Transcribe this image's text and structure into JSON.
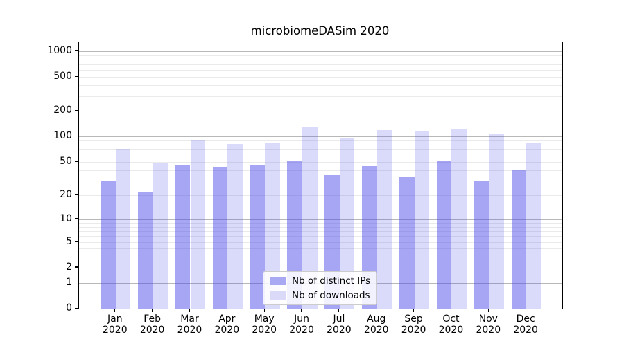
{
  "title": "microbiomeDASim 2020",
  "chart_data": {
    "type": "bar",
    "title": "microbiomeDASim 2020",
    "categories": [
      "Jan 2020",
      "Feb 2020",
      "Mar 2020",
      "Apr 2020",
      "May 2020",
      "Jun 2020",
      "Jul 2020",
      "Aug 2020",
      "Sep 2020",
      "Oct 2020",
      "Nov 2020",
      "Dec 2020"
    ],
    "series": [
      {
        "name": "Nb of distinct IPs",
        "color": "rgba(70,70,235,0.48)",
        "legend_color": "#a9a9f3",
        "values": [
          30,
          22,
          46,
          44,
          46,
          51,
          35,
          45,
          33,
          52,
          30,
          41
        ]
      },
      {
        "name": "Nb of downloads",
        "color": "rgba(70,70,235,0.20)",
        "legend_color": "#dadaf8",
        "values": [
          71,
          48,
          92,
          82,
          85,
          130,
          97,
          119,
          117,
          122,
          106,
          86
        ]
      }
    ],
    "y_ticks": [
      0,
      1,
      2,
      5,
      10,
      20,
      50,
      100,
      200,
      500,
      1000
    ],
    "yscale": "log1p",
    "ylim": [
      0,
      1285
    ],
    "xlabel": "",
    "ylabel": "",
    "grid": true,
    "legend_position": "bottom-center",
    "colors": {
      "major_grid": "#b8b8b8",
      "minor_grid": "#eaeaea",
      "axis": "#000000",
      "text": "#000000",
      "legend_border": "#cccccc"
    }
  }
}
